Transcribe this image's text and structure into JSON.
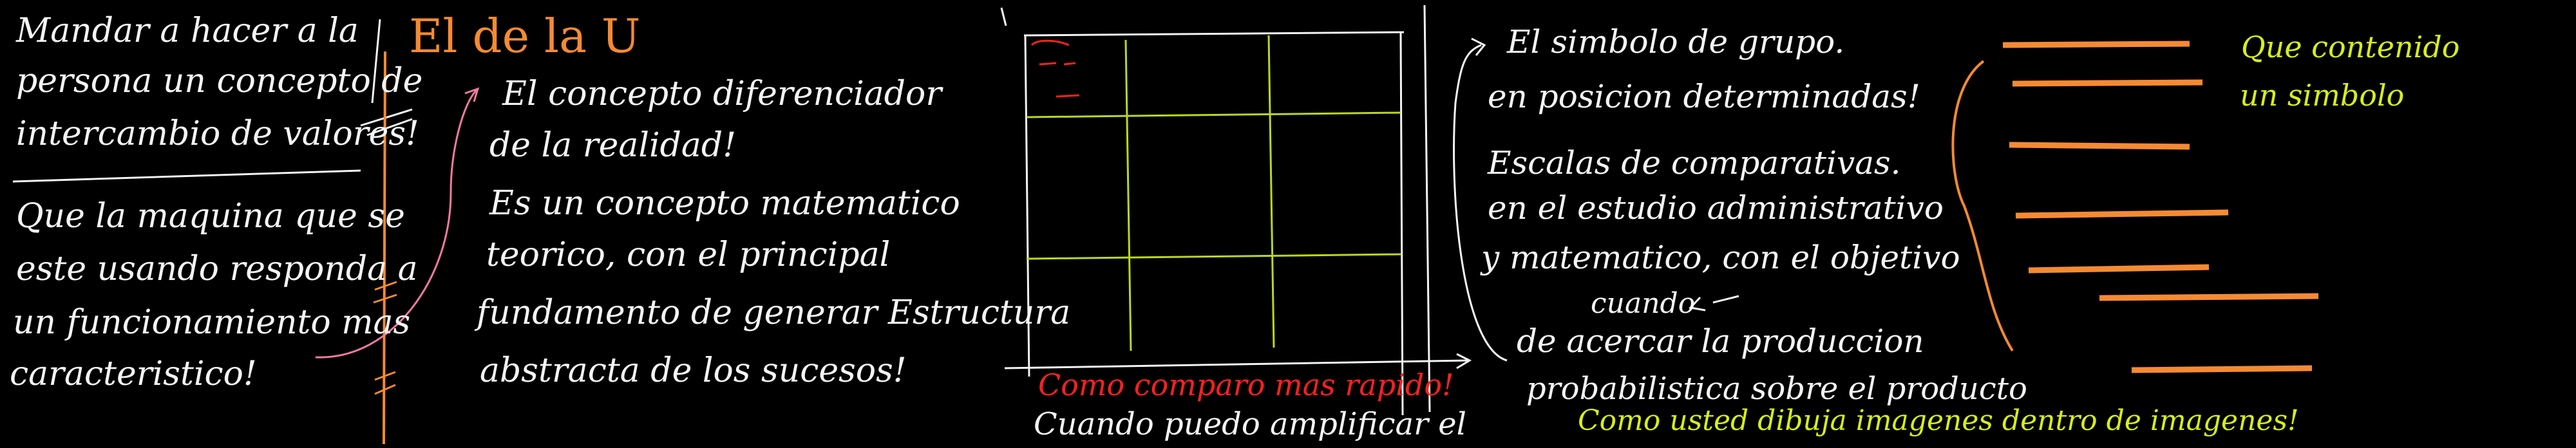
{
  "colors": {
    "background": "#000000",
    "white_ink": "#f4f4f4",
    "orange_ink": "#f58a33",
    "red_ink": "#ff2020",
    "yellow_ink": "#d6ee1a",
    "grid_lines": "#b9d81f"
  },
  "left_block": {
    "line1": "Mandar a hacer a la",
    "line2": "persona un concepto de",
    "line3": "intercambio de valores!"
  },
  "machine_block": {
    "line1": "Que la maquina que se",
    "line2": "este usando responda a",
    "line3": "un funcionamiento mas",
    "line4": "caracteristico!"
  },
  "title": "El de la U",
  "concept_block": {
    "line1": "El concepto diferenciador",
    "line2": "de la realidad!",
    "line3": "Es un concepto matematico",
    "line4": "teorico, con el principal",
    "line5": "fundamento de generar Estructura",
    "line6": "abstracta de los sucesos!"
  },
  "grid_caption": {
    "red": "Como comparo mas rapido!",
    "white": "Cuando puedo amplificar el"
  },
  "right_block": {
    "line1": "El simbolo de grupo.",
    "line2": "en posicion determinadas!",
    "line3": "Escalas de comparativas.",
    "line4": "en el estudio administrativo",
    "line5": "y matematico, con el objetivo",
    "line6": "cuando",
    "line7": "de acercar la produccion",
    "line8": "probabilistica sobre el producto"
  },
  "yellow_bottom": "Como usted dibuja imagenes dentro de imagenes!",
  "yellow_right": {
    "line1": "Que contenido",
    "line2": "un simbolo"
  }
}
